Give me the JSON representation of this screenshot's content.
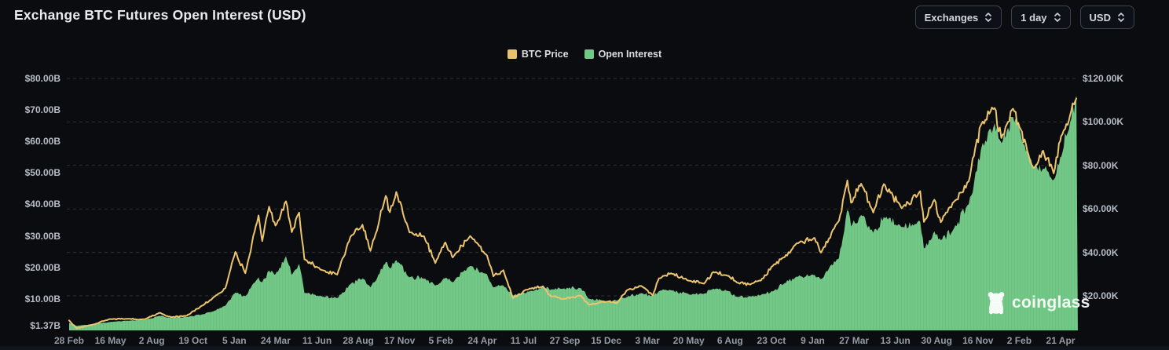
{
  "header": {
    "title": "Exchange BTC Futures Open Interest (USD)",
    "controls": [
      {
        "label": "Exchanges"
      },
      {
        "label": "1 day"
      },
      {
        "label": "USD"
      }
    ]
  },
  "legend": [
    {
      "label": "BTC Price",
      "color": "#e8c26d"
    },
    {
      "label": "Open Interest",
      "color": "#74c887"
    }
  ],
  "watermark": {
    "text": "coinglass"
  },
  "colors": {
    "background": "#0a0c10",
    "bottom_strip": "#10141d",
    "grid": "#9aa3af",
    "axis_text": "#b7bdc6",
    "x_axis_text": "#959ba5",
    "title_text": "#e9ebef",
    "button_border": "#3d434e",
    "button_text": "#d3d7de",
    "price_line": "#ecc56d",
    "oi_fill": "#74c887",
    "oi_stripe": "#5fb476"
  },
  "chart_data": {
    "type": "area",
    "title": "Exchange BTC Futures Open Interest (USD)",
    "xlabel": "",
    "ylabel": "",
    "grid": "horizontal-dashed",
    "legend_position": "top-center",
    "x_range": [
      "2020-02-28",
      "2025-05-24"
    ],
    "x_ticks": [
      "28 Feb",
      "16 May",
      "2 Aug",
      "19 Oct",
      "5 Jan",
      "24 Mar",
      "11 Jun",
      "28 Aug",
      "17 Nov",
      "5 Feb",
      "24 Apr",
      "11 Jul",
      "27 Sep",
      "15 Dec",
      "3 Mar",
      "20 May",
      "6 Aug",
      "23 Oct",
      "9 Jan",
      "27 Mar",
      "13 Jun",
      "30 Aug",
      "16 Nov",
      "2 Feb",
      "21 Apr"
    ],
    "left_axis": {
      "label": "Open Interest",
      "unit": "USD billions",
      "range": [
        0,
        80.2
      ],
      "ticks": [
        {
          "label": "$80.00B",
          "value": 80
        },
        {
          "label": "$70.00B",
          "value": 70
        },
        {
          "label": "$60.00B",
          "value": 60
        },
        {
          "label": "$50.00B",
          "value": 50
        },
        {
          "label": "$40.00B",
          "value": 40
        },
        {
          "label": "$30.00B",
          "value": 30
        },
        {
          "label": "$20.00B",
          "value": 20
        },
        {
          "label": "$10.00B",
          "value": 10
        },
        {
          "label": "$1.37B",
          "value": 1.37
        }
      ]
    },
    "right_axis": {
      "label": "BTC Price",
      "unit": "USD thousands",
      "range": [
        4.1,
        120.4
      ],
      "ticks": [
        {
          "label": "$120.00K",
          "value": 120
        },
        {
          "label": "$100.00K",
          "value": 100
        },
        {
          "label": "$80.00K",
          "value": 80
        },
        {
          "label": "$60.00K",
          "value": 60
        },
        {
          "label": "$40.00K",
          "value": 40
        },
        {
          "label": "$20.00K",
          "value": 20
        }
      ]
    },
    "x": [
      "2020-02-28",
      "2020-03-13",
      "2020-04-15",
      "2020-05-15",
      "2020-06-15",
      "2020-07-20",
      "2020-08-17",
      "2020-09-08",
      "2020-10-08",
      "2020-11-06",
      "2020-11-30",
      "2020-12-20",
      "2021-01-08",
      "2021-01-27",
      "2021-02-21",
      "2021-02-28",
      "2021-03-13",
      "2021-03-25",
      "2021-04-14",
      "2021-04-25",
      "2021-05-09",
      "2021-05-19",
      "2021-06-22",
      "2021-07-20",
      "2021-08-14",
      "2021-09-06",
      "2021-09-21",
      "2021-10-20",
      "2021-10-28",
      "2021-11-09",
      "2021-12-04",
      "2022-01-01",
      "2022-01-22",
      "2022-02-10",
      "2022-02-24",
      "2022-03-29",
      "2022-04-30",
      "2022-05-12",
      "2022-05-31",
      "2022-06-18",
      "2022-07-20",
      "2022-08-14",
      "2022-08-28",
      "2022-09-21",
      "2022-10-25",
      "2022-11-09",
      "2022-12-15",
      "2023-01-01",
      "2023-01-21",
      "2023-02-16",
      "2023-03-10",
      "2023-03-22",
      "2023-04-14",
      "2023-05-20",
      "2023-06-15",
      "2023-07-03",
      "2023-08-01",
      "2023-08-17",
      "2023-09-11",
      "2023-10-01",
      "2023-10-24",
      "2023-11-15",
      "2023-12-08",
      "2024-01-11",
      "2024-01-23",
      "2024-02-26",
      "2024-03-13",
      "2024-03-20",
      "2024-04-08",
      "2024-05-01",
      "2024-05-21",
      "2024-06-24",
      "2024-07-29",
      "2024-08-05",
      "2024-08-25",
      "2024-09-06",
      "2024-10-01",
      "2024-10-29",
      "2024-11-11",
      "2024-11-22",
      "2024-12-17",
      "2024-12-30",
      "2025-01-21",
      "2025-02-02",
      "2025-02-28",
      "2025-03-19",
      "2025-04-08",
      "2025-04-22",
      "2025-05-09",
      "2025-05-21"
    ],
    "series": [
      {
        "name": "BTC Price",
        "type": "line",
        "axis": "right",
        "color": "#ecc56d",
        "unit": "USD (thousands)",
        "values": [
          8.7,
          5.1,
          6.9,
          9.3,
          9.4,
          9.2,
          12.2,
          10.2,
          10.9,
          15.5,
          19.7,
          23.5,
          40.2,
          30.4,
          57.0,
          45.2,
          61.0,
          52.3,
          63.5,
          49.3,
          58.3,
          36.8,
          31.8,
          29.8,
          47.1,
          52.7,
          40.7,
          66.0,
          58.5,
          67.8,
          49.2,
          47.3,
          35.1,
          44.6,
          37.7,
          47.5,
          38.6,
          29.0,
          31.8,
          19.0,
          23.4,
          24.4,
          20.0,
          18.5,
          20.1,
          15.9,
          17.4,
          16.6,
          22.7,
          24.6,
          20.2,
          28.1,
          30.4,
          26.9,
          25.6,
          31.0,
          29.2,
          26.1,
          25.2,
          27.0,
          33.9,
          37.8,
          44.2,
          46.6,
          39.9,
          54.5,
          73.1,
          62.8,
          71.6,
          58.3,
          71.4,
          60.3,
          68.2,
          54.0,
          64.2,
          53.9,
          63.3,
          72.7,
          88.7,
          99.0,
          106.4,
          92.6,
          106.1,
          97.7,
          79.0,
          86.8,
          76.3,
          93.4,
          103.0,
          110.8
        ]
      },
      {
        "name": "Open Interest",
        "type": "area",
        "axis": "left",
        "color": "#74c887",
        "unit": "USD (billions)",
        "values": [
          2.4,
          1.37,
          2.0,
          2.6,
          3.0,
          3.2,
          4.6,
          3.9,
          4.2,
          5.0,
          6.2,
          7.8,
          12.0,
          10.8,
          16.8,
          15.2,
          19.0,
          17.8,
          23.6,
          17.6,
          21.0,
          11.8,
          10.7,
          10.2,
          14.6,
          16.4,
          13.6,
          21.6,
          19.8,
          22.3,
          16.8,
          16.4,
          14.2,
          16.6,
          15.2,
          20.4,
          17.8,
          13.6,
          14.2,
          11.0,
          12.4,
          13.9,
          12.8,
          13.2,
          13.4,
          10.0,
          9.3,
          9.4,
          10.6,
          11.8,
          10.9,
          12.4,
          12.7,
          11.3,
          11.6,
          13.2,
          12.4,
          10.6,
          10.8,
          11.2,
          12.4,
          15.0,
          17.0,
          17.6,
          16.2,
          23.0,
          38.2,
          33.0,
          36.6,
          31.0,
          36.0,
          32.8,
          34.6,
          26.0,
          31.4,
          28.6,
          32.4,
          40.0,
          50.2,
          58.0,
          65.8,
          59.4,
          67.8,
          64.0,
          52.0,
          51.4,
          47.8,
          55.0,
          66.0,
          74.6
        ]
      }
    ]
  }
}
